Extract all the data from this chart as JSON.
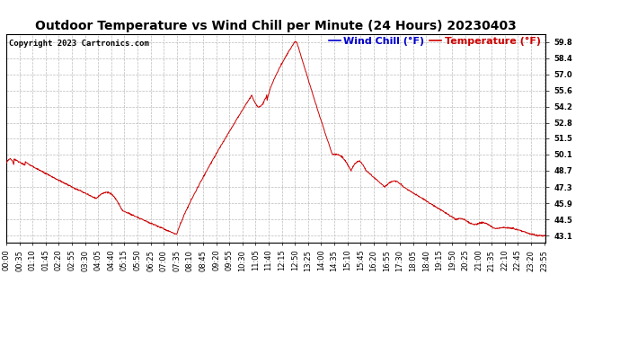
{
  "title": "Outdoor Temperature vs Wind Chill per Minute (24 Hours) 20230403",
  "copyright": "Copyright 2023 Cartronics.com",
  "legend_wind_chill": "Wind Chill (°F)",
  "legend_temperature": "Temperature (°F)",
  "wind_chill_color": "#0000ff",
  "temperature_color": "#cc0000",
  "line_color": "#cc0000",
  "background_color": "#ffffff",
  "grid_color": "#bbbbbb",
  "yticks": [
    43.1,
    44.5,
    45.9,
    47.3,
    48.7,
    50.1,
    51.5,
    52.8,
    54.2,
    55.6,
    57.0,
    58.4,
    59.8
  ],
  "ylim": [
    42.5,
    60.5
  ],
  "xtick_labels": [
    "00:00",
    "00:35",
    "01:10",
    "01:45",
    "02:20",
    "02:55",
    "03:30",
    "04:05",
    "04:40",
    "05:15",
    "05:50",
    "06:25",
    "07:00",
    "07:35",
    "08:10",
    "08:45",
    "09:20",
    "09:55",
    "10:30",
    "11:05",
    "11:40",
    "12:15",
    "12:50",
    "13:25",
    "14:00",
    "14:35",
    "15:10",
    "15:45",
    "16:20",
    "16:55",
    "17:30",
    "18:05",
    "18:40",
    "19:15",
    "19:50",
    "20:25",
    "21:00",
    "21:35",
    "22:10",
    "22:45",
    "23:20",
    "23:55"
  ],
  "title_fontsize": 10,
  "copyright_fontsize": 6.5,
  "legend_fontsize": 8,
  "tick_fontsize": 6,
  "legend_wind_chill_color": "#0000cc",
  "legend_temperature_color": "#cc0000"
}
